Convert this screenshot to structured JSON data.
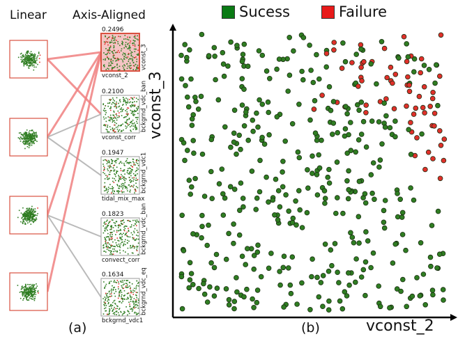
{
  "panel_a": {
    "col_left": "Linear",
    "col_right": "Axis-Aligned",
    "tag": "(a)"
  },
  "panel_b": {
    "tag": "(b)"
  },
  "colors": {
    "success": "#2f7d22",
    "failure": "#e0302a",
    "success_legend": "#0a7a14",
    "failure_legend": "#e81a1a",
    "highlight_line": "#f08080",
    "gray_line": "#b3b3b3",
    "box_border": "#d9503f"
  },
  "chart_data": [
    {
      "type": "scatter",
      "panel": "b",
      "xlabel": "vconst_2",
      "ylabel": "vconst_3",
      "legend": [
        {
          "name": "Sucess",
          "color": "#0a7a14"
        },
        {
          "name": "Failure",
          "color": "#e81a1a"
        }
      ],
      "legend_placement": "top",
      "grid": false,
      "point_count_approx": 480,
      "failure_region": "upper-right corner and upper-middle band"
    },
    {
      "type": "scatter",
      "panel": "a",
      "subtype": "small-multiples",
      "linear_views": 4,
      "axis_aligned_views": [
        {
          "score": "0.2496",
          "xlabel": "vconst_2",
          "ylabel": "vconst_3",
          "selected": true
        },
        {
          "score": "0.2100",
          "xlabel": "vconst_corr",
          "ylabel": "bckgrnd_vdc_ban"
        },
        {
          "score": "0.1947",
          "xlabel": "tidal_mix_max",
          "ylabel": "bckgrnd_vdc1"
        },
        {
          "score": "0.1823",
          "xlabel": "convect_corr",
          "ylabel": "bckgrnd_vdc_ban"
        },
        {
          "score": "0.1634",
          "xlabel": "bckgrnd_vdc1",
          "ylabel": "bckgrnd_vdc_eq"
        }
      ],
      "links": [
        {
          "from": 0,
          "to": 0,
          "style": "highlight"
        },
        {
          "from": 0,
          "to": 1,
          "style": "highlight"
        },
        {
          "from": 1,
          "to": 0,
          "style": "highlight"
        },
        {
          "from": 1,
          "to": 1,
          "style": "gray"
        },
        {
          "from": 1,
          "to": 2,
          "style": "gray"
        },
        {
          "from": 2,
          "to": 0,
          "style": "highlight"
        },
        {
          "from": 2,
          "to": 3,
          "style": "gray"
        },
        {
          "from": 2,
          "to": 4,
          "style": "gray"
        },
        {
          "from": 3,
          "to": 0,
          "style": "highlight"
        }
      ]
    }
  ]
}
